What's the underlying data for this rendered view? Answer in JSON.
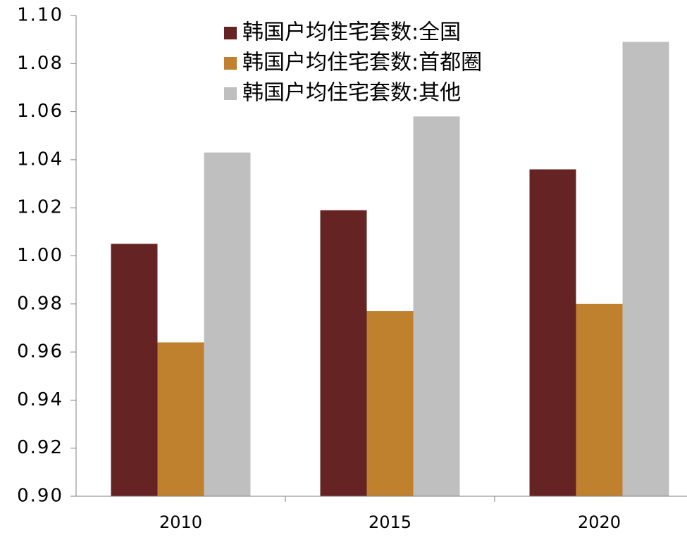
{
  "chart_data": {
    "type": "bar",
    "categories": [
      "2010",
      "2015",
      "2020"
    ],
    "series": [
      {
        "name": "韩国户均住宅套数:全国",
        "color": "#662323",
        "values": [
          1.005,
          1.019,
          1.036
        ]
      },
      {
        "name": "韩国户均住宅套数:首都圈",
        "color": "#c0812f",
        "values": [
          0.964,
          0.977,
          0.98
        ]
      },
      {
        "name": "韩国户均住宅套数:其他",
        "color": "#bfbfbf",
        "values": [
          1.043,
          1.058,
          1.089
        ]
      }
    ],
    "ylim": [
      0.9,
      1.1
    ],
    "yticks": [
      {
        "value": 0.9,
        "label": "0.90"
      },
      {
        "value": 0.92,
        "label": "0.92"
      },
      {
        "value": 0.94,
        "label": "0.94"
      },
      {
        "value": 0.96,
        "label": "0.96"
      },
      {
        "value": 0.98,
        "label": "0.98"
      },
      {
        "value": 1,
        "label": "1.00"
      },
      {
        "value": 1.02,
        "label": "1.02"
      },
      {
        "value": 1.04,
        "label": "1.04"
      },
      {
        "value": 1.06,
        "label": "1.06"
      },
      {
        "value": 1.08,
        "label": "1.08"
      },
      {
        "value": 1.1,
        "label": "1.10"
      }
    ],
    "legend": "top"
  }
}
